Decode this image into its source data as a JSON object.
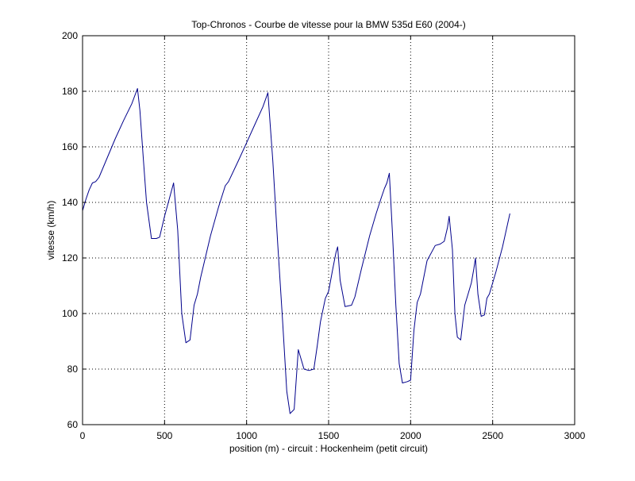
{
  "chart_data": {
    "type": "line",
    "title": "Top-Chronos - Courbe de vitesse pour la BMW 535d E60 (2004-)",
    "xlabel": "position (m) - circuit : Hockenheim (petit circuit)",
    "ylabel": "vitesse (km/h)",
    "xlim": [
      0,
      3000
    ],
    "ylim": [
      60,
      200
    ],
    "xticks": [
      0,
      500,
      1000,
      1500,
      2000,
      2500,
      3000
    ],
    "yticks": [
      60,
      80,
      100,
      120,
      140,
      160,
      180,
      200
    ],
    "grid": true,
    "line_color": "#00008b",
    "series": [
      {
        "x": [
          0,
          20,
          40,
          60,
          80,
          100,
          150,
          200,
          250,
          300,
          335,
          350,
          370,
          390,
          420,
          450,
          470,
          500,
          530,
          555,
          580,
          605,
          630,
          655,
          680,
          700,
          720,
          780,
          830,
          870,
          890,
          950,
          1000,
          1050,
          1100,
          1130,
          1160,
          1190,
          1220,
          1245,
          1265,
          1290,
          1315,
          1330,
          1350,
          1380,
          1410,
          1430,
          1450,
          1480,
          1500,
          1525,
          1545,
          1555,
          1570,
          1600,
          1640,
          1660,
          1700,
          1750,
          1790,
          1820,
          1840,
          1855,
          1870,
          1890,
          1910,
          1930,
          1950,
          1980,
          2000,
          2020,
          2040,
          2060,
          2100,
          2150,
          2180,
          2205,
          2225,
          2235,
          2255,
          2270,
          2285,
          2305,
          2330,
          2350,
          2370,
          2385,
          2395,
          2410,
          2430,
          2450,
          2465,
          2480,
          2520,
          2560,
          2605
        ],
        "values": [
          137,
          141,
          144.5,
          147,
          147.5,
          149,
          156,
          163,
          169.5,
          175.5,
          181,
          173,
          156,
          140,
          127,
          127,
          127.5,
          135,
          141.5,
          147,
          130,
          100,
          89.5,
          90.5,
          103,
          107,
          113,
          128,
          138.5,
          146,
          147.5,
          155,
          161.5,
          168,
          174.5,
          179.5,
          155,
          125,
          97,
          72,
          64,
          65.5,
          87,
          84,
          80,
          79.5,
          80,
          88,
          97,
          105.5,
          108,
          116,
          122,
          124,
          112,
          102.5,
          103,
          106,
          116,
          128,
          136,
          141.5,
          145,
          147,
          150.5,
          128,
          103,
          82,
          75,
          75.5,
          76,
          94,
          104,
          107,
          119,
          124.5,
          125,
          126,
          131,
          135,
          123,
          100,
          91.5,
          90.5,
          103,
          107,
          111,
          116,
          120,
          107,
          99,
          99.5,
          105.5,
          107,
          115,
          124,
          136
        ]
      }
    ]
  }
}
